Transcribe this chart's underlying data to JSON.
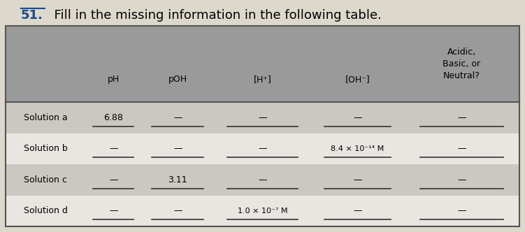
{
  "title_num": "51.",
  "title_rest": "  Fill in the missing information in the following table.",
  "title_fontsize": 13,
  "title_color": "#1a4a8a",
  "bg_color": "#ddd8cc",
  "header_bg": "#9a9a9a",
  "row_bg_even": "#cac8c0",
  "row_bg_odd": "#e8e6e0",
  "border_color": "#555555",
  "col_headers": [
    "pH",
    "pOH",
    "[H⁺]",
    "[OH⁻]",
    "Acidic,\nBasic, or\nNeutral?"
  ],
  "row_labels": [
    "Solution a",
    "Solution b",
    "Solution c",
    "Solution d"
  ],
  "cells": [
    [
      "6.88",
      "—",
      "—",
      "—",
      "—"
    ],
    [
      "—",
      "—",
      "—",
      "8.4 × 10⁻¹⁴ M",
      "—"
    ],
    [
      "—",
      "3.11",
      "—",
      "—",
      "—"
    ],
    [
      "—",
      "—",
      "1.0 × 10⁻⁷ M",
      "—",
      "—"
    ]
  ],
  "figsize": [
    7.51,
    3.32
  ],
  "dpi": 100
}
